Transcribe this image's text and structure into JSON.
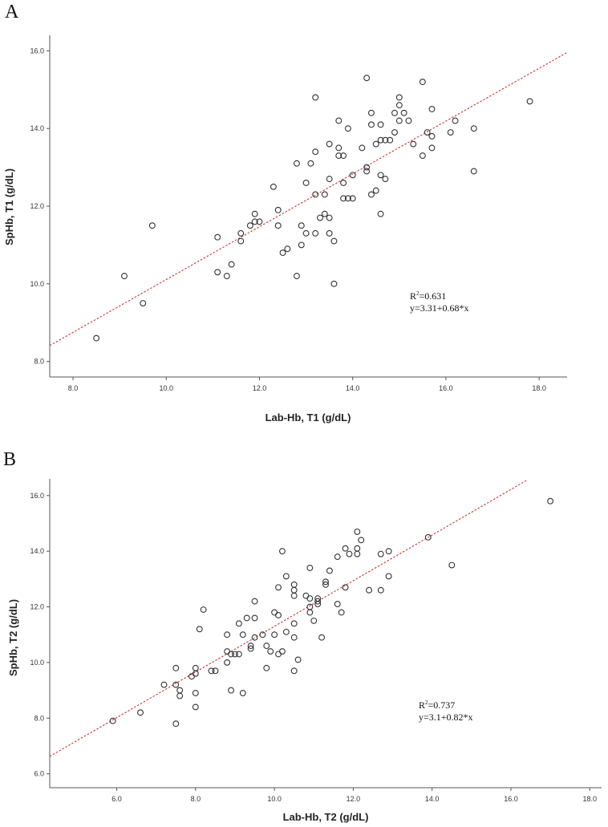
{
  "chart_data": [
    {
      "panel": "A",
      "type": "scatter",
      "title": "",
      "xlabel": "Lab-Hb, T1 (g/dL)",
      "ylabel": "SpHb, T1 (g/dL)",
      "xlim": [
        7.5,
        18.6
      ],
      "ylim": [
        7.6,
        16.4
      ],
      "xticks": [
        8.0,
        10.0,
        12.0,
        14.0,
        16.0,
        18.0
      ],
      "xtick_labels": [
        "8.0",
        "10.0",
        "12.0",
        "14.0",
        "16.0",
        "18.0"
      ],
      "yticks": [
        8.0,
        10.0,
        12.0,
        14.0,
        16.0
      ],
      "ytick_labels": [
        "8.0",
        "10.0",
        "12.0",
        "14.0",
        "16.0"
      ],
      "fit": {
        "intercept": 3.31,
        "slope": 0.68,
        "x_range": [
          7.5,
          18.6
        ],
        "color": "#cc3333"
      },
      "annotation": {
        "r2_text": "R",
        "r2_sup": "2",
        "r2_value": "=0.631",
        "equation": "y=3.31+0.68*x"
      },
      "points": [
        [
          8.5,
          8.6
        ],
        [
          9.1,
          10.2
        ],
        [
          9.5,
          9.5
        ],
        [
          9.7,
          11.5
        ],
        [
          11.1,
          11.2
        ],
        [
          11.1,
          10.3
        ],
        [
          11.3,
          10.2
        ],
        [
          11.4,
          10.5
        ],
        [
          11.6,
          11.3
        ],
        [
          11.6,
          11.1
        ],
        [
          11.8,
          11.5
        ],
        [
          11.9,
          11.6
        ],
        [
          11.9,
          11.8
        ],
        [
          12.0,
          11.6
        ],
        [
          12.3,
          12.5
        ],
        [
          12.4,
          11.5
        ],
        [
          12.4,
          11.9
        ],
        [
          12.5,
          10.8
        ],
        [
          12.6,
          10.9
        ],
        [
          12.8,
          13.1
        ],
        [
          12.8,
          10.2
        ],
        [
          12.9,
          11.5
        ],
        [
          12.9,
          11.0
        ],
        [
          13.0,
          11.3
        ],
        [
          13.0,
          12.6
        ],
        [
          13.1,
          13.1
        ],
        [
          13.2,
          13.4
        ],
        [
          13.2,
          12.3
        ],
        [
          13.2,
          14.8
        ],
        [
          13.2,
          11.3
        ],
        [
          13.3,
          11.7
        ],
        [
          13.4,
          11.8
        ],
        [
          13.4,
          12.3
        ],
        [
          13.5,
          11.3
        ],
        [
          13.5,
          11.7
        ],
        [
          13.5,
          12.7
        ],
        [
          13.5,
          13.6
        ],
        [
          13.6,
          10.0
        ],
        [
          13.6,
          11.1
        ],
        [
          13.7,
          13.5
        ],
        [
          13.7,
          13.3
        ],
        [
          13.7,
          14.2
        ],
        [
          13.8,
          12.6
        ],
        [
          13.8,
          12.2
        ],
        [
          13.8,
          13.3
        ],
        [
          13.9,
          12.2
        ],
        [
          13.9,
          14.0
        ],
        [
          14.0,
          12.2
        ],
        [
          14.0,
          12.8
        ],
        [
          14.2,
          13.5
        ],
        [
          14.3,
          12.9
        ],
        [
          14.3,
          13.0
        ],
        [
          14.3,
          15.3
        ],
        [
          14.4,
          14.4
        ],
        [
          14.4,
          14.1
        ],
        [
          14.4,
          12.3
        ],
        [
          14.5,
          13.6
        ],
        [
          14.5,
          12.4
        ],
        [
          14.6,
          14.1
        ],
        [
          14.6,
          13.7
        ],
        [
          14.6,
          11.8
        ],
        [
          14.6,
          12.8
        ],
        [
          14.7,
          12.7
        ],
        [
          14.7,
          13.7
        ],
        [
          14.8,
          13.7
        ],
        [
          14.9,
          14.4
        ],
        [
          14.9,
          13.9
        ],
        [
          15.0,
          14.8
        ],
        [
          15.0,
          14.6
        ],
        [
          15.0,
          14.2
        ],
        [
          15.1,
          14.4
        ],
        [
          15.2,
          14.2
        ],
        [
          15.3,
          13.6
        ],
        [
          15.5,
          15.2
        ],
        [
          15.5,
          13.3
        ],
        [
          15.6,
          13.9
        ],
        [
          15.7,
          14.5
        ],
        [
          15.7,
          13.8
        ],
        [
          15.7,
          13.5
        ],
        [
          16.1,
          13.9
        ],
        [
          16.2,
          14.2
        ],
        [
          16.6,
          14.0
        ],
        [
          16.6,
          12.9
        ],
        [
          17.8,
          14.7
        ]
      ]
    },
    {
      "panel": "B",
      "type": "scatter",
      "title": "",
      "xlabel": "Lab-Hb, T2 (g/dL)",
      "ylabel": "SpHb, T2 (g/dL)",
      "xlim": [
        4.3,
        18.3
      ],
      "ylim": [
        5.5,
        16.6
      ],
      "xticks": [
        6.0,
        8.0,
        10.0,
        12.0,
        14.0,
        16.0,
        18.0
      ],
      "xtick_labels": [
        "6.0",
        "8.0",
        "10.0",
        "12.0",
        "14.0",
        "16.0",
        "18.0"
      ],
      "yticks": [
        6.0,
        8.0,
        10.0,
        12.0,
        14.0,
        16.0
      ],
      "ytick_labels": [
        "6.0",
        "8.0",
        "10.0",
        "12.0",
        "14.0",
        "16.0"
      ],
      "fit": {
        "intercept": 3.1,
        "slope": 0.82,
        "x_range": [
          4.3,
          16.4
        ],
        "color": "#cc3333"
      },
      "annotation": {
        "r2_text": "R",
        "r2_sup": "2",
        "r2_value": "=0.737",
        "equation": "y=3.1+0.82*x"
      },
      "points": [
        [
          5.9,
          7.9
        ],
        [
          6.6,
          8.2
        ],
        [
          7.2,
          9.2
        ],
        [
          7.5,
          9.8
        ],
        [
          7.5,
          9.2
        ],
        [
          7.5,
          7.8
        ],
        [
          7.6,
          9.0
        ],
        [
          7.6,
          8.8
        ],
        [
          7.9,
          9.5
        ],
        [
          8.0,
          9.8
        ],
        [
          8.0,
          9.6
        ],
        [
          8.0,
          8.9
        ],
        [
          8.0,
          8.4
        ],
        [
          8.1,
          11.2
        ],
        [
          8.2,
          11.9
        ],
        [
          8.4,
          9.7
        ],
        [
          8.5,
          9.7
        ],
        [
          8.8,
          11.0
        ],
        [
          8.8,
          10.4
        ],
        [
          8.8,
          10.0
        ],
        [
          8.9,
          10.3
        ],
        [
          8.9,
          9.0
        ],
        [
          9.0,
          10.3
        ],
        [
          9.1,
          11.4
        ],
        [
          9.1,
          10.3
        ],
        [
          9.2,
          11.0
        ],
        [
          9.2,
          8.9
        ],
        [
          9.3,
          11.6
        ],
        [
          9.4,
          10.6
        ],
        [
          9.4,
          10.5
        ],
        [
          9.5,
          11.6
        ],
        [
          9.5,
          12.2
        ],
        [
          9.5,
          10.9
        ],
        [
          9.7,
          11.0
        ],
        [
          9.8,
          10.6
        ],
        [
          9.8,
          9.8
        ],
        [
          9.9,
          10.4
        ],
        [
          10.0,
          11.8
        ],
        [
          10.0,
          11.0
        ],
        [
          10.1,
          12.7
        ],
        [
          10.1,
          11.7
        ],
        [
          10.1,
          10.3
        ],
        [
          10.2,
          14.0
        ],
        [
          10.2,
          10.4
        ],
        [
          10.3,
          13.1
        ],
        [
          10.3,
          11.1
        ],
        [
          10.5,
          12.8
        ],
        [
          10.5,
          12.6
        ],
        [
          10.5,
          12.4
        ],
        [
          10.5,
          11.4
        ],
        [
          10.5,
          10.9
        ],
        [
          10.5,
          9.7
        ],
        [
          10.6,
          10.1
        ],
        [
          10.8,
          12.4
        ],
        [
          10.9,
          13.4
        ],
        [
          10.9,
          12.3
        ],
        [
          10.9,
          12.0
        ],
        [
          10.9,
          11.8
        ],
        [
          11.0,
          11.5
        ],
        [
          11.1,
          12.3
        ],
        [
          11.1,
          12.2
        ],
        [
          11.1,
          12.1
        ],
        [
          11.2,
          10.9
        ],
        [
          11.3,
          12.9
        ],
        [
          11.3,
          12.8
        ],
        [
          11.4,
          13.3
        ],
        [
          11.6,
          13.8
        ],
        [
          11.6,
          12.1
        ],
        [
          11.7,
          11.8
        ],
        [
          11.8,
          14.1
        ],
        [
          11.8,
          12.7
        ],
        [
          11.9,
          13.9
        ],
        [
          12.1,
          14.7
        ],
        [
          12.1,
          14.1
        ],
        [
          12.1,
          13.9
        ],
        [
          12.2,
          14.4
        ],
        [
          12.4,
          12.6
        ],
        [
          12.7,
          13.9
        ],
        [
          12.7,
          12.6
        ],
        [
          12.9,
          14.0
        ],
        [
          12.9,
          13.1
        ],
        [
          13.9,
          14.5
        ],
        [
          14.5,
          13.5
        ],
        [
          17.0,
          15.8
        ]
      ]
    }
  ]
}
